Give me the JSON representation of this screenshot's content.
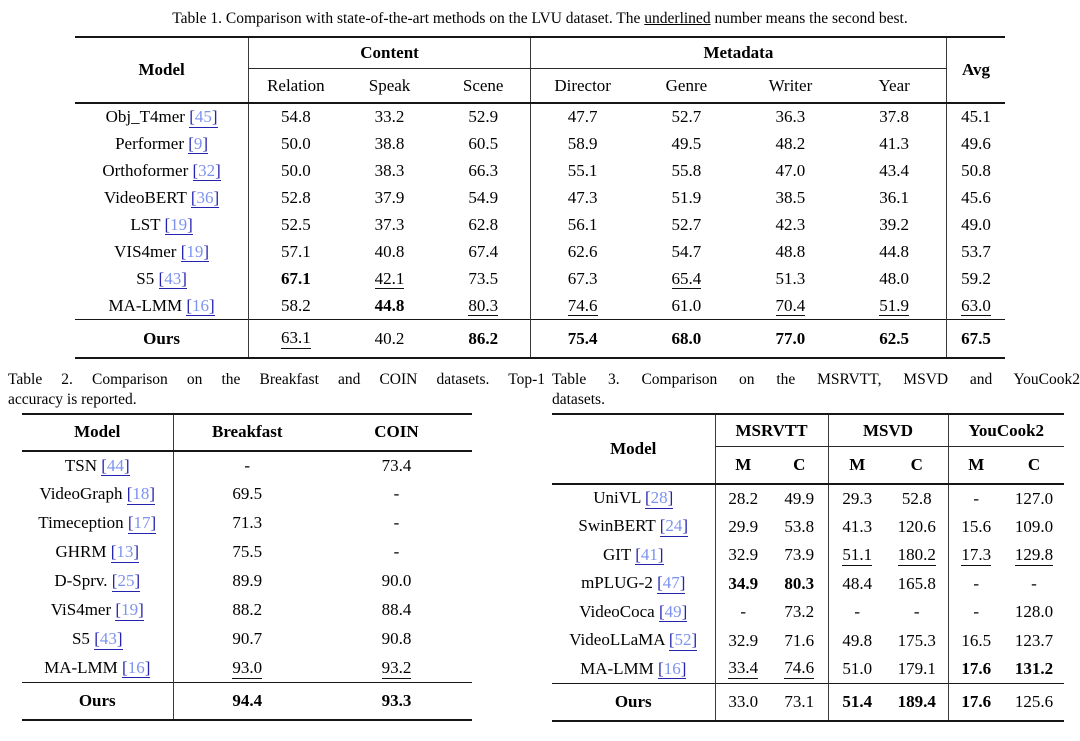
{
  "colors": {
    "cite_bracket": "#2323b0",
    "cite_number": "#7d93f0",
    "rule": "#161616",
    "text": "#000000"
  },
  "table1": {
    "caption": {
      "prefix": "Table 1. Comparison with state-of-the-art methods on the LVU dataset. The ",
      "underlined": "underlined",
      "suffix": " number means the second best."
    },
    "header": {
      "model": "Model",
      "avg": "Avg",
      "groups": [
        {
          "label": "Content",
          "cols": [
            "Relation",
            "Speak",
            "Scene"
          ]
        },
        {
          "label": "Metadata",
          "cols": [
            "Director",
            "Genre",
            "Writer",
            "Year"
          ]
        }
      ]
    },
    "rows": [
      {
        "model": "Obj_T4mer",
        "cite": "45",
        "cells": [
          "54.8",
          "33.2",
          "52.9",
          "47.7",
          "52.7",
          "36.3",
          "37.8",
          "45.1"
        ]
      },
      {
        "model": "Performer",
        "cite": "9",
        "cells": [
          "50.0",
          "38.8",
          "60.5",
          "58.9",
          "49.5",
          "48.2",
          "41.3",
          "49.6"
        ]
      },
      {
        "model": "Orthoformer",
        "cite": "32",
        "cells": [
          "50.0",
          "38.3",
          "66.3",
          "55.1",
          "55.8",
          "47.0",
          "43.4",
          "50.8"
        ]
      },
      {
        "model": "VideoBERT",
        "cite": "36",
        "cells": [
          "52.8",
          "37.9",
          "54.9",
          "47.3",
          "51.9",
          "38.5",
          "36.1",
          "45.6"
        ]
      },
      {
        "model": "LST",
        "cite": "19",
        "cells": [
          "52.5",
          "37.3",
          "62.8",
          "56.1",
          "52.7",
          "42.3",
          "39.2",
          "49.0"
        ]
      },
      {
        "model": "VIS4mer",
        "cite": "19",
        "cells": [
          "57.1",
          "40.8",
          "67.4",
          "62.6",
          "54.7",
          "48.8",
          "44.8",
          "53.7"
        ]
      },
      {
        "model": "S5",
        "cite": "43",
        "cells": [
          "**67.1**",
          "__42.1__",
          "73.5",
          "67.3",
          "__65.4__",
          "51.3",
          "48.0",
          "59.2"
        ]
      },
      {
        "model": "MA-LMM",
        "cite": "16",
        "cells": [
          "58.2",
          "**44.8**",
          "__80.3__",
          "__74.6__",
          "61.0",
          "__70.4__",
          "__51.9__",
          "__63.0__"
        ]
      }
    ],
    "ours_label": "Ours",
    "ours": [
      "__63.1__",
      "40.2",
      "**86.2**",
      "**75.4**",
      "**68.0**",
      "**77.0**",
      "**62.5**",
      "**67.5**"
    ]
  },
  "table2": {
    "caption_lines": [
      "Table 2. Comparison on the Breakfast and COIN datasets. Top-1",
      "accuracy is reported."
    ],
    "header": {
      "model": "Model",
      "cols": [
        "Breakfast",
        "COIN"
      ]
    },
    "rows": [
      {
        "model": "TSN",
        "cite": "44",
        "cells": [
          "-",
          "73.4"
        ]
      },
      {
        "model": "VideoGraph",
        "cite": "18",
        "cells": [
          "69.5",
          "-"
        ]
      },
      {
        "model": "Timeception",
        "cite": "17",
        "cells": [
          "71.3",
          "-"
        ]
      },
      {
        "model": "GHRM",
        "cite": "13",
        "cells": [
          "75.5",
          "-"
        ]
      },
      {
        "model": "D-Sprv.",
        "cite": "25",
        "cells": [
          "89.9",
          "90.0"
        ]
      },
      {
        "model": "ViS4mer",
        "cite": "19",
        "cells": [
          "88.2",
          "88.4"
        ]
      },
      {
        "model": "S5",
        "cite": "43",
        "cells": [
          "90.7",
          "90.8"
        ]
      },
      {
        "model": "MA-LMM",
        "cite": "16",
        "cells": [
          "__93.0__",
          "__93.2__"
        ]
      }
    ],
    "ours_label": "Ours",
    "ours": [
      "**94.4**",
      "**93.3**"
    ]
  },
  "table3": {
    "caption_lines": [
      "Table 3. Comparison on the MSRVTT, MSVD and YouCook2",
      "datasets."
    ],
    "header": {
      "model": "Model",
      "groups": [
        {
          "label": "MSRVTT",
          "cols": [
            "M",
            "C"
          ]
        },
        {
          "label": "MSVD",
          "cols": [
            "M",
            "C"
          ]
        },
        {
          "label": "YouCook2",
          "cols": [
            "M",
            "C"
          ]
        }
      ]
    },
    "rows": [
      {
        "model": "UniVL",
        "cite": "28",
        "cells": [
          "28.2",
          "49.9",
          "29.3",
          "52.8",
          "-",
          "127.0"
        ]
      },
      {
        "model": "SwinBERT",
        "cite": "24",
        "cells": [
          "29.9",
          "53.8",
          "41.3",
          "120.6",
          "15.6",
          "109.0"
        ]
      },
      {
        "model": "GIT",
        "cite": "41",
        "cells": [
          "32.9",
          "73.9",
          "__51.1__",
          "__180.2__",
          "__17.3__",
          "__129.8__"
        ]
      },
      {
        "model": "mPLUG-2",
        "cite": "47",
        "cells": [
          "**34.9**",
          "**80.3**",
          "48.4",
          "165.8",
          "-",
          "-"
        ]
      },
      {
        "model": "VideoCoca",
        "cite": "49",
        "cells": [
          "-",
          "73.2",
          "-",
          "-",
          "-",
          "128.0"
        ]
      },
      {
        "model": "VideoLLaMA",
        "cite": "52",
        "cells": [
          "32.9",
          "71.6",
          "49.8",
          "175.3",
          "16.5",
          "123.7"
        ]
      },
      {
        "model": "MA-LMM",
        "cite": "16",
        "cells": [
          "__33.4__",
          "__74.6__",
          "51.0",
          "179.1",
          "**17.6**",
          "**131.2**"
        ]
      }
    ],
    "ours_label": "Ours",
    "ours": [
      "33.0",
      "73.1",
      "**51.4**",
      "**189.4**",
      "**17.6**",
      "125.6"
    ]
  }
}
